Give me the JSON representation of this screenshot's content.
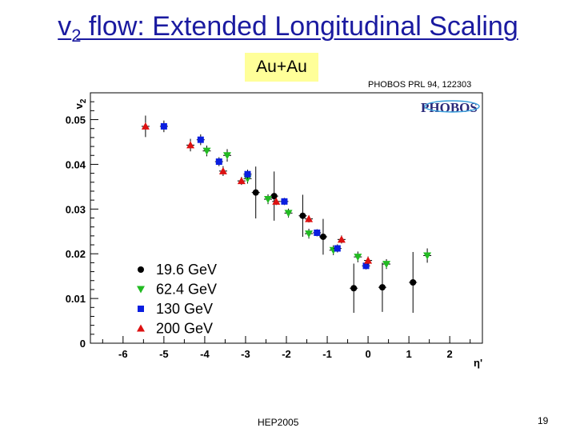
{
  "slide": {
    "title_main": "v",
    "title_sub": "2",
    "title_rest": " flow: Extended Longitudinal Scaling",
    "badge": "Au+Au",
    "citation": "PHOBOS PRL 94, 122303",
    "logo_text": "PHOBOS",
    "footer": "HEP2005",
    "page_number": "19"
  },
  "chart_data": {
    "type": "scatter",
    "title": "",
    "xlabel": "η'",
    "ylabel_main": "v",
    "ylabel_sub": "2",
    "xlim": [
      -6.8,
      2.8
    ],
    "ylim": [
      0,
      0.056
    ],
    "xticks": [
      -6,
      -5,
      -4,
      -3,
      -2,
      -1,
      0,
      1,
      2
    ],
    "yticks": [
      0,
      0.01,
      0.02,
      0.03,
      0.04,
      0.05
    ],
    "ytick_labels": [
      "0",
      "0.01",
      "0.02",
      "0.03",
      "0.04",
      "0.05"
    ],
    "legend_position": "lower-left",
    "series": [
      {
        "name": "19.6 GeV",
        "marker": "circle",
        "color": "#000000",
        "points": [
          {
            "x": -2.75,
            "y": 0.0337,
            "err": 0.0058
          },
          {
            "x": -2.3,
            "y": 0.0329,
            "err": 0.0055
          },
          {
            "x": -1.6,
            "y": 0.0285,
            "err": 0.0047
          },
          {
            "x": -1.1,
            "y": 0.0238,
            "err": 0.004
          },
          {
            "x": -0.35,
            "y": 0.0123,
            "err": 0.0055
          },
          {
            "x": 0.35,
            "y": 0.0125,
            "err": 0.0055
          },
          {
            "x": 1.1,
            "y": 0.0136,
            "err": 0.0068
          }
        ]
      },
      {
        "name": "62.4 GeV",
        "marker": "triangle-down",
        "color": "#22bb22",
        "points": [
          {
            "x": -3.95,
            "y": 0.043,
            "err": 0.0012
          },
          {
            "x": -3.45,
            "y": 0.042,
            "err": 0.0014
          },
          {
            "x": -2.95,
            "y": 0.0368,
            "err": 0.0011
          },
          {
            "x": -2.45,
            "y": 0.0322,
            "err": 0.0011
          },
          {
            "x": -1.95,
            "y": 0.0291,
            "err": 0.001
          },
          {
            "x": -1.45,
            "y": 0.0245,
            "err": 0.0011
          },
          {
            "x": -0.85,
            "y": 0.0208,
            "err": 0.0011
          },
          {
            "x": -0.25,
            "y": 0.0193,
            "err": 0.0012
          },
          {
            "x": 0.45,
            "y": 0.0177,
            "err": 0.0011
          },
          {
            "x": 1.45,
            "y": 0.0196,
            "err": 0.0016
          }
        ]
      },
      {
        "name": "130 GeV",
        "marker": "square",
        "color": "#0a1ee0",
        "points": [
          {
            "x": -5.0,
            "y": 0.0485,
            "err": 0.0013
          },
          {
            "x": -4.1,
            "y": 0.0455,
            "err": 0.0012
          },
          {
            "x": -3.65,
            "y": 0.0406,
            "err": 0.001
          },
          {
            "x": -2.95,
            "y": 0.0378,
            "err": 0.001
          },
          {
            "x": -2.05,
            "y": 0.0317,
            "err": 0.0008
          },
          {
            "x": -1.25,
            "y": 0.0247,
            "err": 0.0008
          },
          {
            "x": -0.75,
            "y": 0.0212,
            "err": 0.0009
          },
          {
            "x": -0.05,
            "y": 0.0173,
            "err": 0.0008
          }
        ]
      },
      {
        "name": "200 GeV",
        "marker": "triangle-up",
        "color": "#dd1111",
        "points": [
          {
            "x": -5.45,
            "y": 0.0485,
            "err": 0.0024
          },
          {
            "x": -4.35,
            "y": 0.0443,
            "err": 0.0014
          },
          {
            "x": -3.55,
            "y": 0.0385,
            "err": 0.0011
          },
          {
            "x": -3.1,
            "y": 0.0363,
            "err": 0.0009
          },
          {
            "x": -2.25,
            "y": 0.0317,
            "err": 0.0008
          },
          {
            "x": -1.45,
            "y": 0.0278,
            "err": 0.0008
          },
          {
            "x": -0.65,
            "y": 0.0232,
            "err": 0.0009
          },
          {
            "x": 0.0,
            "y": 0.0185,
            "err": 0.0009
          }
        ]
      }
    ]
  }
}
